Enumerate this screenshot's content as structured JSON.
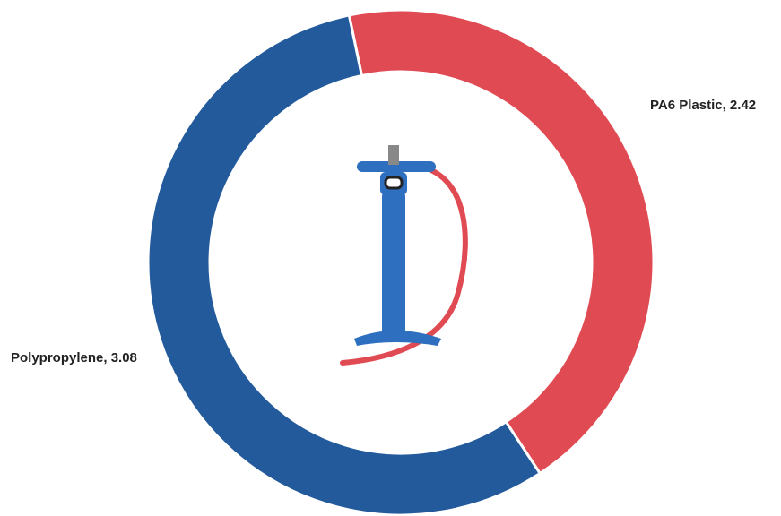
{
  "chart_data": {
    "type": "donut",
    "values": [
      3.08,
      2.42
    ],
    "value_labels": [
      "Polypropylene, 3.08",
      "PA6 Plastic, 2.42"
    ],
    "colors": [
      "#235a9c",
      "#e04a52"
    ]
  }
}
